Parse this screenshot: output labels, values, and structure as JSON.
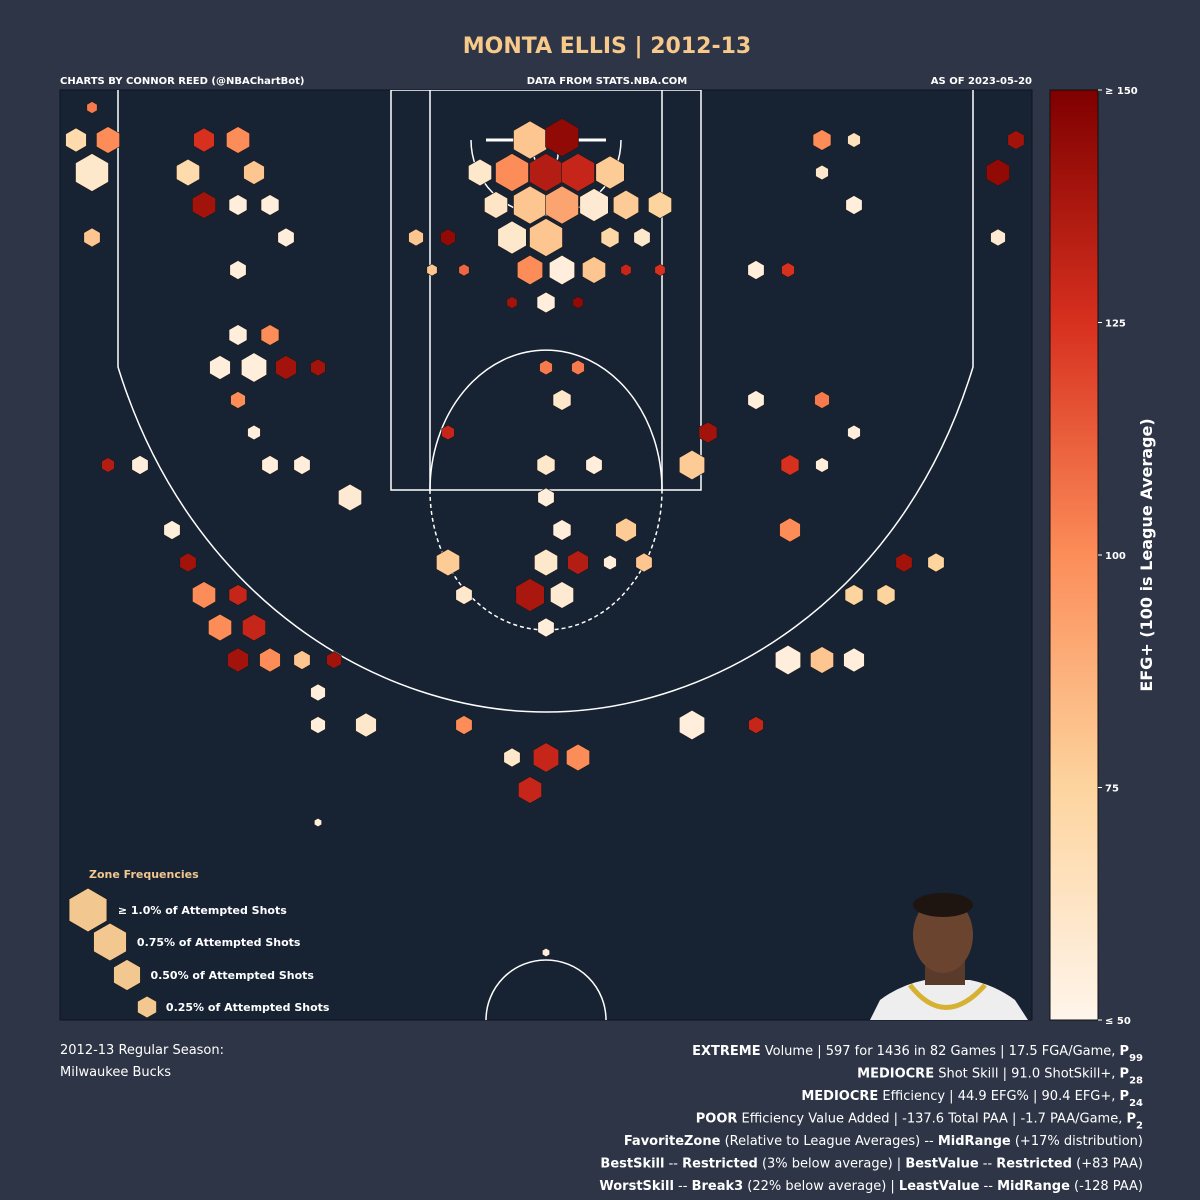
{
  "chart_data": {
    "type": "hexbin",
    "title": "MONTA ELLIS | 2012-13",
    "credit": "CHARTS BY CONNOR REED (@NBAChartBot)",
    "source": "DATA FROM STATS.NBA.COM",
    "as_of": "AS OF 2023-05-20",
    "xlim": [
      -243,
      243
    ],
    "ylim": [
      -20,
      352
    ],
    "x": [
      -8,
      8,
      -33,
      -17,
      0,
      16,
      32,
      -25,
      -8,
      8,
      24,
      40,
      57,
      -17,
      0,
      32,
      48,
      -49,
      -65,
      -8,
      8,
      24,
      40,
      57,
      -41,
      -57,
      0,
      -17,
      16,
      0,
      16,
      8,
      0,
      24,
      73,
      81,
      -49,
      0,
      8,
      40,
      -49,
      0,
      16,
      -8,
      8,
      -41,
      0,
      49,
      32,
      122,
      122,
      -98,
      -122,
      -138,
      -203,
      -219,
      -187,
      -171,
      -154,
      -163,
      -146,
      -154,
      -138,
      -122,
      -106,
      -179,
      121,
      138,
      154,
      154,
      170,
      179,
      195,
      73,
      -90,
      0,
      16,
      -17,
      -8,
      -41,
      -114,
      -114,
      105,
      -227,
      -235,
      -219,
      -227,
      -171,
      -154,
      -179,
      -171,
      -154,
      -138,
      -146,
      -130,
      -227,
      -154,
      138,
      154,
      226,
      235,
      138,
      154,
      226,
      105,
      121,
      -154,
      -138,
      -146,
      -130,
      -163,
      -114,
      -154,
      -146,
      105,
      138,
      154,
      138,
      0,
      -114
    ],
    "y": [
      0,
      -1,
      13,
      13,
      13,
      13,
      13,
      26,
      26,
      26,
      26,
      26,
      26,
      39,
      39,
      39,
      39,
      39,
      39,
      52,
      52,
      52,
      52,
      52,
      52,
      52,
      65,
      65,
      65,
      91,
      91,
      104,
      130,
      130,
      130,
      117,
      117,
      143,
      156,
      156,
      169,
      169,
      169,
      182,
      182,
      182,
      195,
      169,
      169,
      156,
      130,
      143,
      130,
      130,
      130,
      130,
      156,
      182,
      182,
      195,
      195,
      208,
      208,
      208,
      208,
      169,
      208,
      208,
      208,
      182,
      182,
      169,
      169,
      234,
      234,
      247,
      247,
      247,
      260,
      234,
      234,
      221,
      234,
      -13,
      0,
      0,
      13,
      0,
      0,
      13,
      26,
      26,
      26,
      13,
      39,
      39,
      52,
      0,
      0,
      13,
      0,
      13,
      26,
      39,
      52,
      52,
      78,
      78,
      91,
      91,
      91,
      91,
      104,
      117,
      104,
      104,
      117,
      130,
      325,
      273
    ],
    "values": [
      80,
      145,
      60,
      100,
      135,
      130,
      78,
      62,
      80,
      92,
      58,
      78,
      75,
      60,
      80,
      72,
      60,
      145,
      80,
      100,
      55,
      80,
      130,
      125,
      110,
      80,
      55,
      140,
      145,
      105,
      105,
      60,
      60,
      55,
      78,
      140,
      130,
      55,
      55,
      78,
      78,
      60,
      135,
      138,
      58,
      60,
      55,
      80,
      55,
      100,
      125,
      58,
      55,
      55,
      55,
      135,
      55,
      100,
      130,
      100,
      130,
      140,
      100,
      80,
      140,
      140,
      55,
      80,
      55,
      75,
      75,
      140,
      75,
      55,
      60,
      130,
      100,
      60,
      130,
      100,
      55,
      55,
      130,
      105,
      70,
      100,
      60,
      125,
      100,
      70,
      140,
      55,
      55,
      80,
      55,
      80,
      55,
      100,
      65,
      145,
      140,
      60,
      55,
      58,
      55,
      125,
      55,
      100,
      55,
      140,
      55,
      140,
      100,
      55,
      55,
      105,
      55,
      55,
      55,
      55
    ],
    "sizes": [
      1.0,
      1.0,
      0.5,
      1.0,
      1.0,
      1.0,
      0.75,
      0.5,
      1.0,
      1.0,
      0.75,
      0.6,
      0.5,
      0.75,
      1.0,
      0.3,
      0.25,
      0.2,
      0.2,
      0.6,
      0.6,
      0.5,
      0.1,
      0.1,
      0.1,
      0.1,
      0.3,
      0.1,
      0.1,
      0.15,
      0.15,
      0.3,
      0.3,
      0.25,
      0.6,
      0.3,
      0.15,
      0.25,
      0.3,
      0.4,
      0.5,
      0.5,
      0.4,
      0.75,
      0.5,
      0.25,
      0.25,
      0.25,
      0.15,
      0.4,
      0.3,
      0.5,
      0.25,
      0.25,
      0.25,
      0.15,
      0.25,
      0.5,
      0.3,
      0.5,
      0.5,
      0.4,
      0.4,
      0.25,
      0.2,
      0.25,
      0.6,
      0.5,
      0.4,
      0.3,
      0.3,
      0.25,
      0.25,
      0.6,
      0.4,
      0.6,
      0.5,
      0.25,
      0.5,
      0.25,
      0.2,
      0.2,
      0.2,
      0.1,
      0.4,
      0.5,
      1.0,
      0.4,
      0.5,
      0.5,
      0.5,
      0.3,
      0.3,
      0.4,
      0.25,
      0.25,
      0.25,
      0.3,
      0.15,
      0.5,
      0.25,
      0.15,
      0.25,
      0.2,
      0.25,
      0.15,
      0.3,
      0.3,
      0.6,
      0.4,
      0.4,
      0.2,
      0.2,
      0.15,
      0.25,
      0.2,
      0.15,
      0.15,
      0.05,
      0.05
    ],
    "clim": [
      50,
      150
    ],
    "colormap": [
      "#fff5eb",
      "#fdd49e",
      "#fc8d59",
      "#d7301f",
      "#7f0000"
    ],
    "colorbar_label": "EFG+ (100 is League Average)",
    "colorbar_ticks": [
      {
        "value": 150,
        "label": "≥ 150"
      },
      125,
      100,
      75,
      {
        "value": 50,
        "label": "≤ 50"
      }
    ],
    "legend_title": "Zone Frequencies",
    "legend_color": "#f2c890",
    "legend": [
      {
        "value": 1.0,
        "label": "≥ 1.0% of Attempted Shots"
      },
      {
        "value": 0.75,
        "label": "0.75% of Attempted Shots"
      },
      {
        "value": 0.5,
        "label": "0.50% of Attempted Shots"
      },
      {
        "value": 0.25,
        "label": "0.25% of Attempted Shots"
      }
    ]
  },
  "footer": {
    "season": "2012-13 Regular Season:",
    "team": "Milwaukee Bucks",
    "lines": [
      [
        {
          "text": "EXTREME",
          "bold": true
        },
        {
          "text": " Volume | 597 for 1436 in 82 Games | 17.5 FGA/Game, "
        },
        {
          "text": "P",
          "bold": true
        },
        {
          "text": "99",
          "bold": true,
          "sub": true
        }
      ],
      [
        {
          "text": "MEDIOCRE",
          "bold": true
        },
        {
          "text": " Shot Skill | 91.0 ShotSkill+, "
        },
        {
          "text": "P",
          "bold": true
        },
        {
          "text": "28",
          "bold": true,
          "sub": true
        }
      ],
      [
        {
          "text": "MEDIOCRE",
          "bold": true
        },
        {
          "text": " Efficiency | 44.9 EFG% | 90.4 EFG+, "
        },
        {
          "text": "P",
          "bold": true
        },
        {
          "text": "24",
          "bold": true,
          "sub": true
        }
      ],
      [
        {
          "text": "POOR",
          "bold": true
        },
        {
          "text": " Efficiency Value Added | -137.6 Total PAA | -1.7 PAA/Game, "
        },
        {
          "text": "P",
          "bold": true
        },
        {
          "text": "2",
          "bold": true,
          "sub": true
        }
      ],
      [
        {
          "text": "FavoriteZone",
          "bold": true
        },
        {
          "text": " (Relative to League Averages) -- "
        },
        {
          "text": "MidRange",
          "bold": true
        },
        {
          "text": " (+17% distribution)"
        }
      ],
      [
        {
          "text": "BestSkill",
          "bold": true
        },
        {
          "text": " -- "
        },
        {
          "text": "Restricted",
          "bold": true
        },
        {
          "text": " (3% below average) | "
        },
        {
          "text": "BestValue",
          "bold": true
        },
        {
          "text": " -- "
        },
        {
          "text": "Restricted",
          "bold": true
        },
        {
          "text": " (+83 PAA)"
        }
      ],
      [
        {
          "text": "WorstSkill",
          "bold": true
        },
        {
          "text": " -- "
        },
        {
          "text": "Break3",
          "bold": true
        },
        {
          "text": " (22% below average) | "
        },
        {
          "text": "LeastValue",
          "bold": true
        },
        {
          "text": " -- "
        },
        {
          "text": "MidRange",
          "bold": true
        },
        {
          "text": " (-128 PAA)"
        }
      ]
    ]
  }
}
